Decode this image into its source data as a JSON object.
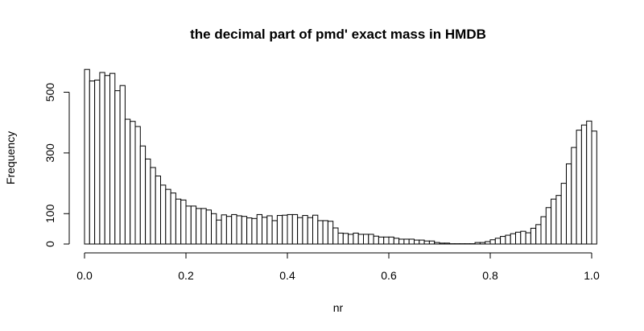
{
  "chart_data": {
    "type": "bar",
    "title": "the decimal part of pmd' exact mass in HMDB",
    "xlabel": "nr",
    "ylabel": "Frequency",
    "xlim": [
      0,
      1
    ],
    "ylim": [
      0,
      580
    ],
    "bin_width": 0.01,
    "x_ticks": [
      {
        "value": 0.0,
        "label": "0.0"
      },
      {
        "value": 0.2,
        "label": "0.2"
      },
      {
        "value": 0.4,
        "label": "0.4"
      },
      {
        "value": 0.6,
        "label": "0.6"
      },
      {
        "value": 0.8,
        "label": "0.8"
      },
      {
        "value": 1.0,
        "label": "1.0"
      }
    ],
    "y_ticks": [
      {
        "value": 0,
        "label": "0"
      },
      {
        "value": 100,
        "label": "100"
      },
      {
        "value": 300,
        "label": "300"
      },
      {
        "value": 500,
        "label": "500"
      }
    ],
    "y_axis_max": 500,
    "grid": false,
    "bar_fill": "#ffffff",
    "bar_stroke": "#000000",
    "values": [
      575,
      537,
      540,
      565,
      555,
      562,
      505,
      522,
      411,
      404,
      387,
      323,
      280,
      252,
      224,
      194,
      180,
      168,
      148,
      145,
      125,
      125,
      117,
      117,
      112,
      100,
      79,
      96,
      91,
      97,
      93,
      91,
      86,
      84,
      97,
      88,
      93,
      77,
      94,
      95,
      97,
      97,
      87,
      94,
      87,
      95,
      77,
      77,
      75,
      53,
      36,
      35,
      32,
      36,
      32,
      32,
      32,
      26,
      23,
      23,
      23,
      19,
      16,
      16,
      16,
      13,
      13,
      10,
      10,
      5,
      3,
      3,
      1,
      1,
      1,
      1,
      1,
      5,
      5,
      8,
      14,
      19,
      25,
      29,
      34,
      39,
      42,
      37,
      52,
      64,
      90,
      120,
      148,
      160,
      200,
      264,
      318,
      375,
      392,
      405,
      372
    ]
  }
}
